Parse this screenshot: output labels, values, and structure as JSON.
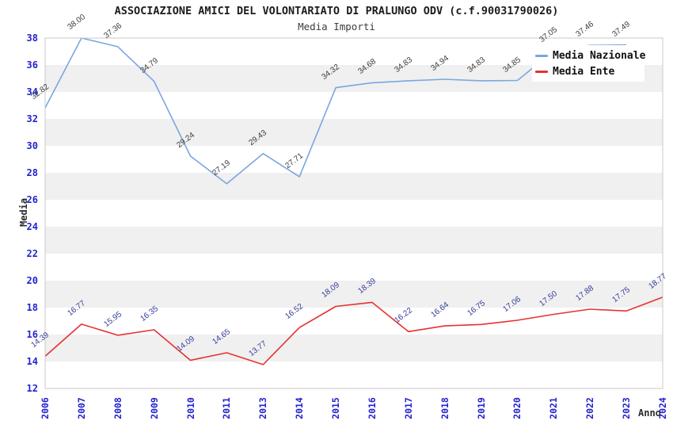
{
  "header": {
    "title": "ASSOCIAZIONE AMICI DEL VOLONTARIATO DI PRALUNGO ODV (c.f.90031790026)",
    "subtitle": "Media Importi"
  },
  "chart_data": {
    "type": "line",
    "title": "ASSOCIAZIONE AMICI DEL VOLONTARIATO DI PRALUNGO ODV (c.f.90031790026)",
    "subtitle": "Media Importi",
    "xlabel": "Anno",
    "ylabel": "Media",
    "categories": [
      "2006",
      "2007",
      "2008",
      "2009",
      "2010",
      "2011",
      "2013",
      "2014",
      "2015",
      "2016",
      "2017",
      "2018",
      "2019",
      "2020",
      "2021",
      "2022",
      "2023",
      "2024"
    ],
    "series": [
      {
        "name": "Media Nazionale",
        "color": "#7ba6e0",
        "label_color": "#3a3a3a",
        "values": [
          32.82,
          38.0,
          37.36,
          34.79,
          29.24,
          27.19,
          29.43,
          27.71,
          34.32,
          34.68,
          34.83,
          34.94,
          34.83,
          34.85,
          37.05,
          37.46,
          37.49,
          null
        ]
      },
      {
        "name": "Media Ente",
        "color": "#e63232",
        "label_color": "#333a99",
        "values": [
          14.39,
          16.77,
          15.95,
          16.35,
          14.09,
          14.65,
          13.77,
          16.52,
          18.09,
          18.39,
          16.22,
          16.64,
          16.75,
          17.06,
          17.5,
          17.88,
          17.75,
          18.77
        ]
      }
    ],
    "ylim": [
      12,
      38
    ],
    "ytick_step": 2,
    "grid": "horizontal-bands",
    "band_colors": [
      "#ffffff",
      "#f0f0f0"
    ],
    "tick_color": "#2323cf",
    "legend_position": "top-right"
  }
}
